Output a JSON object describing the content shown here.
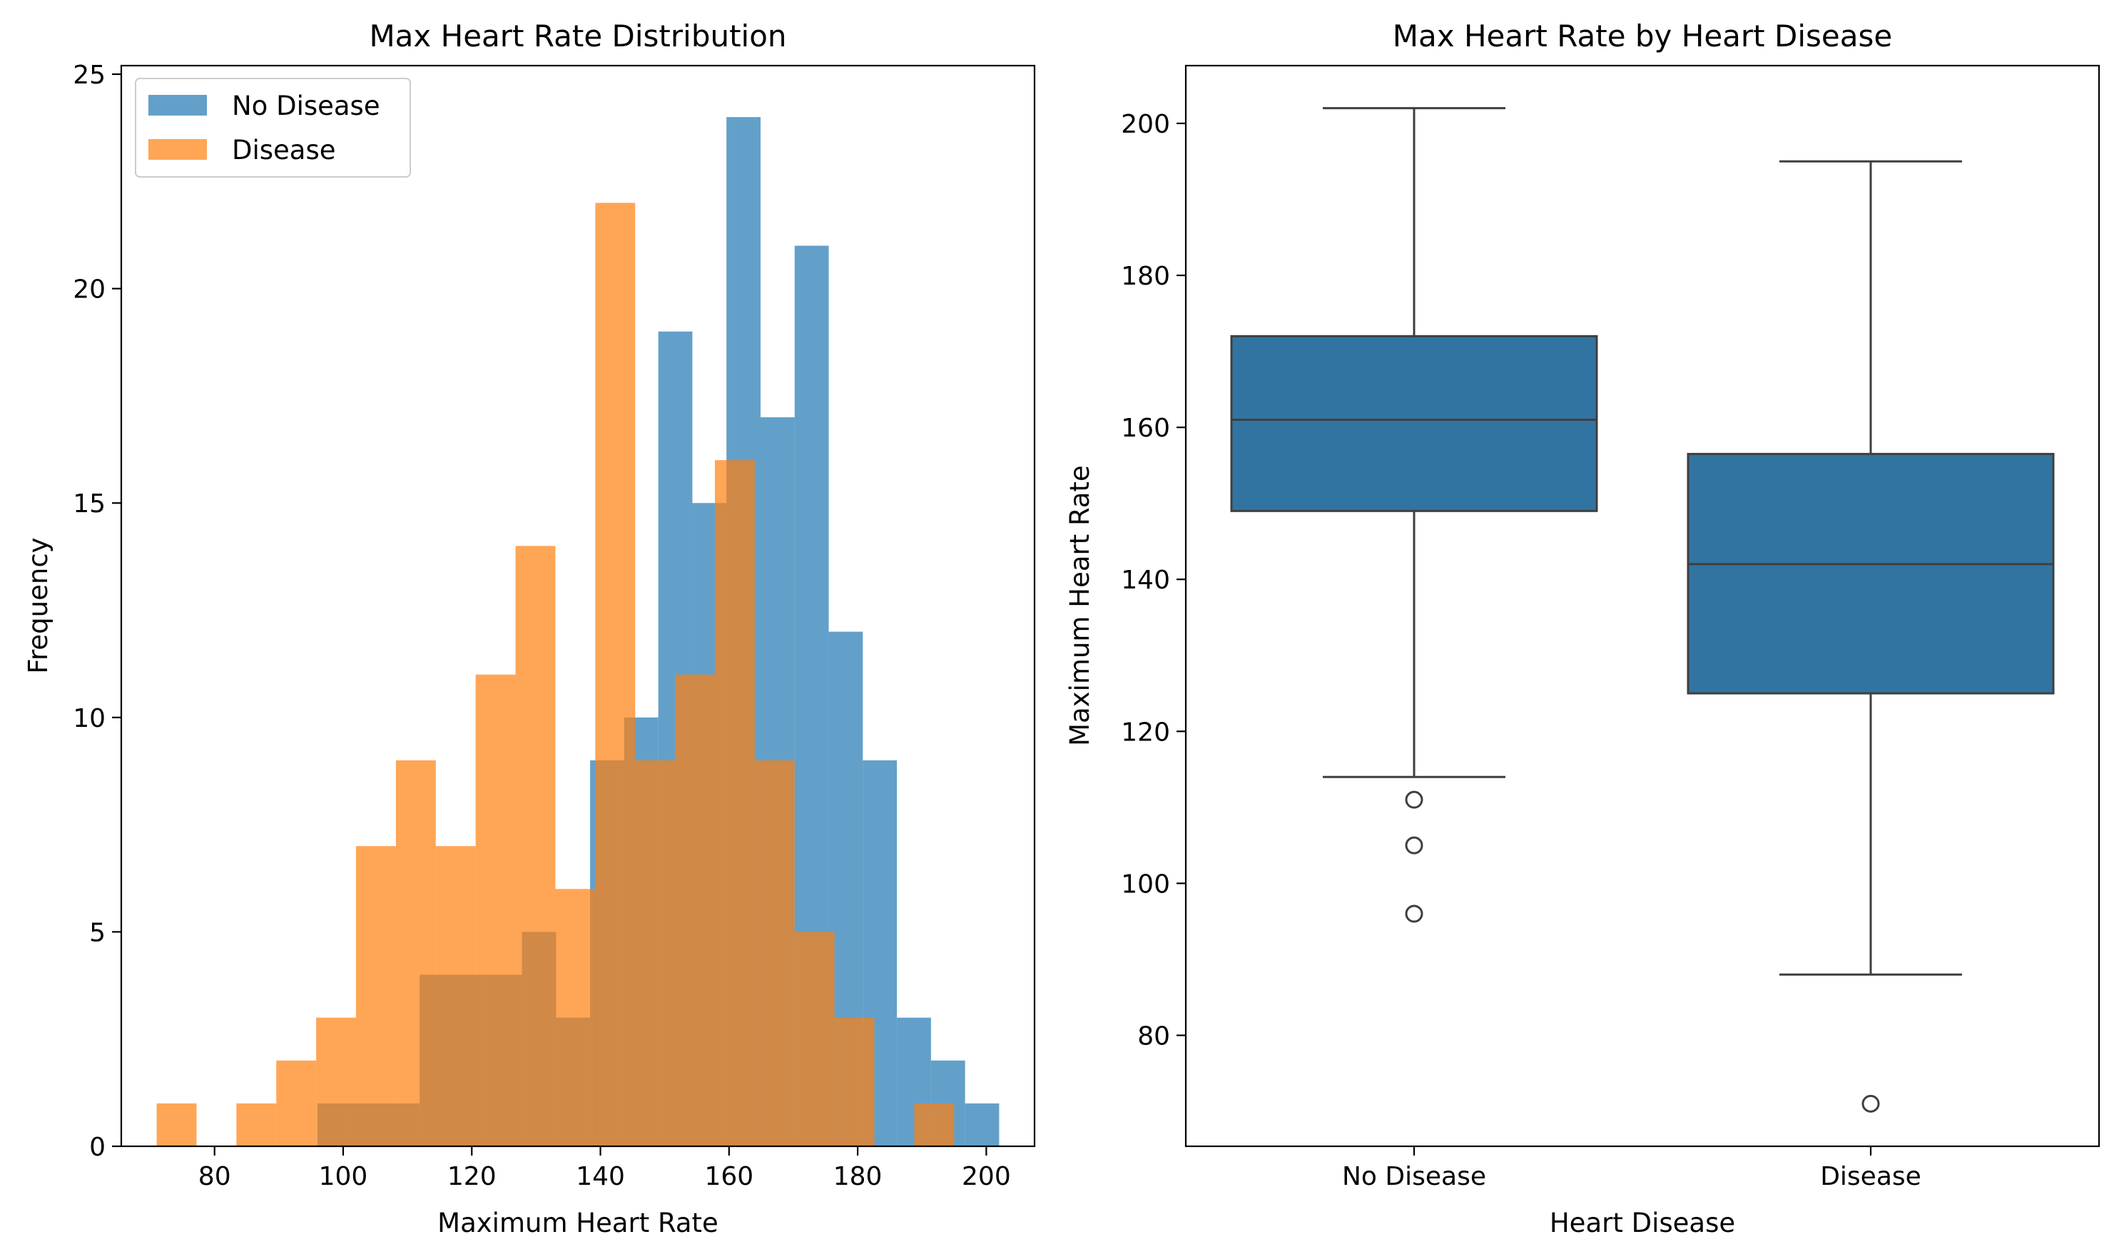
{
  "chart_data": [
    {
      "type": "histogram",
      "title": "Max Heart Rate Distribution",
      "xlabel": "Maximum Heart Rate",
      "ylabel": "Frequency",
      "xlim": [
        65.5,
        207.5
      ],
      "ylim": [
        0,
        25.2
      ],
      "xticks": [
        80,
        100,
        120,
        140,
        160,
        180,
        200
      ],
      "yticks": [
        0,
        5,
        10,
        15,
        20,
        25
      ],
      "legend": {
        "position": "top-left",
        "entries": [
          "No Disease",
          "Disease"
        ]
      },
      "series": [
        {
          "name": "No Disease",
          "color": "#1f77b4",
          "opacity": 0.7,
          "bin_edges": [
            96.0,
            101.3,
            106.6,
            111.9,
            117.2,
            122.5,
            127.8,
            133.1,
            138.4,
            143.7,
            149.0,
            154.3,
            159.6,
            164.9,
            170.2,
            175.5,
            180.8,
            186.1,
            191.4,
            196.7,
            202.0
          ],
          "counts": [
            1,
            1,
            1,
            4,
            4,
            4,
            5,
            3,
            9,
            10,
            19,
            15,
            24,
            17,
            21,
            12,
            9,
            3,
            2,
            1
          ]
        },
        {
          "name": "Disease",
          "color": "#ff7f0e",
          "opacity": 0.7,
          "bin_edges": [
            71.0,
            77.2,
            83.4,
            89.6,
            95.8,
            102.0,
            108.2,
            114.4,
            120.6,
            126.8,
            133.0,
            139.2,
            145.4,
            151.6,
            157.8,
            164.0,
            170.2,
            176.4,
            182.6,
            188.8,
            195.0
          ],
          "counts": [
            1,
            0,
            1,
            2,
            3,
            7,
            9,
            7,
            11,
            14,
            6,
            22,
            9,
            11,
            16,
            9,
            5,
            3,
            0,
            1
          ]
        }
      ]
    },
    {
      "type": "boxplot",
      "title": "Max Heart Rate by Heart Disease",
      "xlabel": "Heart Disease",
      "ylabel": "Maximum Heart Rate",
      "categories": [
        "No Disease",
        "Disease"
      ],
      "ylim": [
        65.4,
        207.6
      ],
      "yticks": [
        80,
        100,
        120,
        140,
        160,
        180,
        200
      ],
      "color": "#3274a1",
      "boxes": [
        {
          "name": "No Disease",
          "whisker_low": 114,
          "q1": 149,
          "median": 161,
          "q3": 172,
          "whisker_high": 202,
          "outliers": [
            111,
            105,
            96
          ]
        },
        {
          "name": "Disease",
          "whisker_low": 88,
          "q1": 125,
          "median": 142,
          "q3": 156.5,
          "whisker_high": 195,
          "outliers": [
            71
          ]
        }
      ]
    }
  ]
}
